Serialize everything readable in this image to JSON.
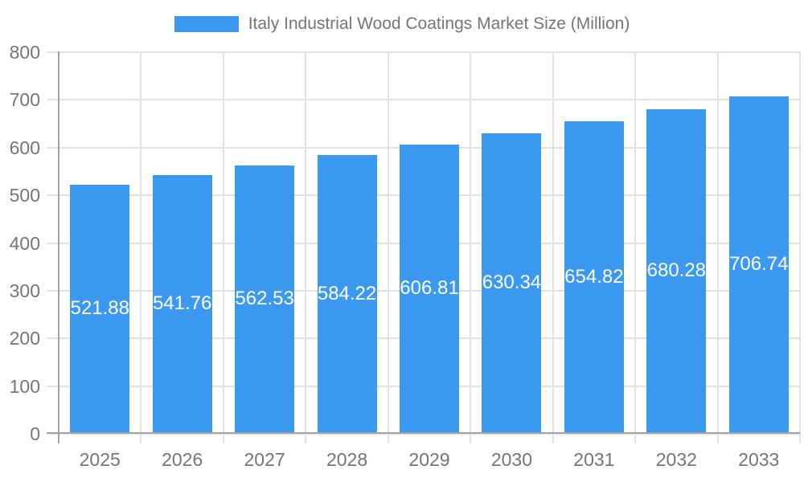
{
  "chart_data": {
    "type": "bar",
    "title": "Italy Industrial Wood Coatings Market Size (Million)",
    "categories": [
      "2025",
      "2026",
      "2027",
      "2028",
      "2029",
      "2030",
      "2031",
      "2032",
      "2033"
    ],
    "values": [
      521.88,
      541.76,
      562.53,
      584.22,
      606.81,
      630.34,
      654.82,
      680.28,
      706.74
    ],
    "value_labels": [
      "521.88",
      "541.76",
      "562.53",
      "584.22",
      "606.81",
      "630.34",
      "654.82",
      "680.28",
      "706.74"
    ],
    "xlabel": "",
    "ylabel": "",
    "ylim": [
      0,
      800
    ],
    "ytick_interval": 100,
    "yticks": [
      0,
      100,
      200,
      300,
      400,
      500,
      600,
      700,
      800
    ],
    "grid": true,
    "legend_position": "top-center",
    "colors": {
      "bar": "#3b99f0",
      "axis": "#a2a2a2",
      "grid": "#e2e2e2",
      "axis_text": "#757575",
      "value_label_text": "#ffffff"
    }
  }
}
